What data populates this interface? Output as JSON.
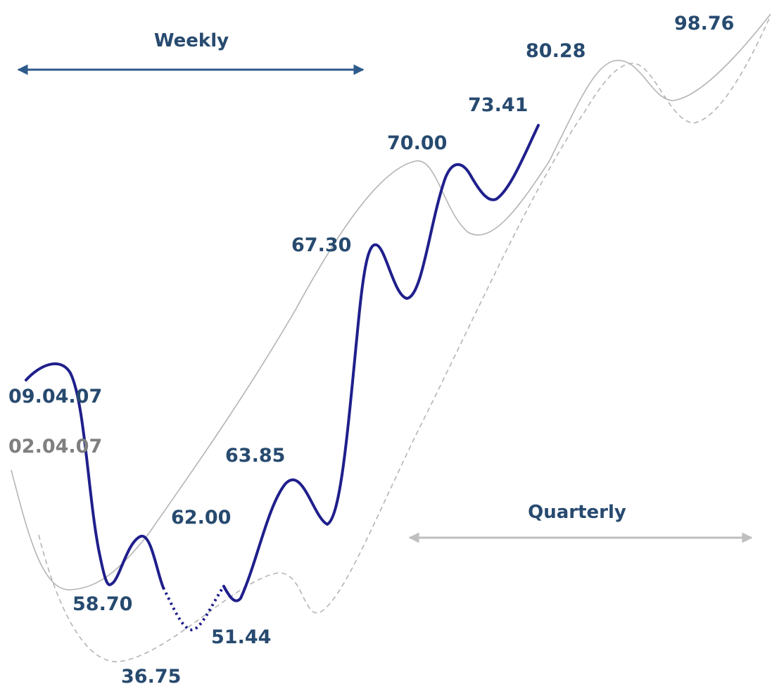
{
  "title": "",
  "ranges": {
    "weekly": {
      "label": "Weekly"
    },
    "quarterly": {
      "label": "Quarterly"
    }
  },
  "dates": {
    "primary": "09.04.07",
    "secondary": "02.04.07"
  },
  "levels": [
    "98.76",
    "80.28",
    "73.41",
    "70.00",
    "67.30",
    "63.85",
    "62.00",
    "58.70",
    "51.44",
    "36.75"
  ],
  "colors": {
    "primary_line": "#1f1f8c",
    "label_text": "#274a6f",
    "weekly_arrow": "#2d5a8a",
    "quarterly_arrow": "#bfbfbf",
    "grey_line": "#b4b4b4",
    "grey_date": "#7f7f7f"
  }
}
